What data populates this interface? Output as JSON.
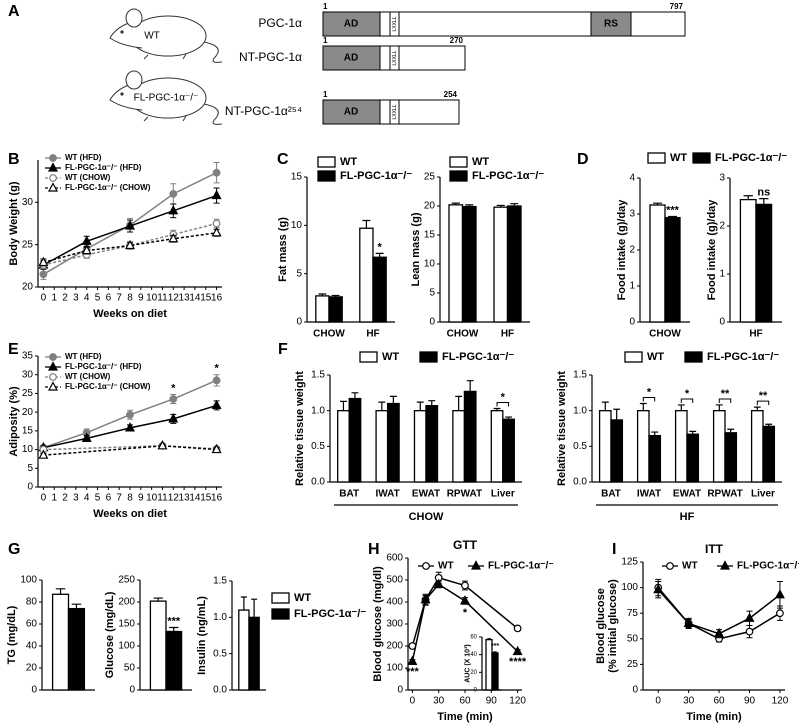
{
  "diagram": {
    "panel": "A",
    "mice": [
      "WT",
      "FL-PGC-1α⁻/⁻"
    ],
    "proteins": [
      {
        "name": "PGC-1α",
        "start": 1,
        "end": 797,
        "domains": [
          "AD",
          "LXXLL",
          "RS"
        ]
      },
      {
        "name": "NT-PGC-1α",
        "start": 1,
        "end": 270,
        "domains": [
          "AD",
          "LXXLL"
        ]
      },
      {
        "name": "NT-PGC-1α²⁵⁴",
        "start": 1,
        "end": 254,
        "domains": [
          "AD",
          "LXXLL"
        ]
      }
    ]
  },
  "chart_data": [
    {
      "type": "line",
      "panel": "B",
      "y_label": "Body Weight (g)",
      "x_label": "Weeks on diet",
      "xlim": [
        -0.5,
        16.5
      ],
      "xticks": [
        0,
        1,
        2,
        3,
        4,
        5,
        6,
        7,
        8,
        9,
        10,
        11,
        12,
        13,
        14,
        15,
        16
      ],
      "ylim": [
        20,
        35
      ],
      "yticks": [
        20,
        25,
        30
      ],
      "legend": "upper left",
      "series": [
        {
          "name": "WT (HFD)",
          "color": "#808080",
          "marker": "circle",
          "filled": true,
          "dashed": false,
          "x": [
            0,
            4,
            8,
            12,
            16
          ],
          "values": [
            21.5,
            24.5,
            27.3,
            31,
            33.5
          ],
          "errors": [
            0.6,
            0.5,
            0.8,
            1.2,
            1.2
          ]
        },
        {
          "name": "FL-PGC-1α⁻/⁻ (HFD)",
          "color": "#000000",
          "marker": "triangle",
          "filled": true,
          "dashed": false,
          "x": [
            0,
            4,
            8,
            12,
            16
          ],
          "values": [
            22.6,
            25.4,
            27.2,
            29,
            30.8
          ],
          "errors": [
            0.5,
            0.6,
            0.7,
            0.8,
            0.9
          ]
        },
        {
          "name": "WT (CHOW)",
          "color": "#808080",
          "marker": "circle",
          "filled": false,
          "dashed": true,
          "x": [
            0,
            4,
            8,
            12,
            16
          ],
          "values": [
            22.6,
            23.8,
            24.9,
            26.2,
            27.5
          ],
          "errors": [
            0.4,
            0.4,
            0.4,
            0.5,
            0.5
          ]
        },
        {
          "name": "FL-PGC-1α⁻/⁻ (CHOW)",
          "color": "#000000",
          "marker": "triangle",
          "filled": false,
          "dashed": true,
          "x": [
            0,
            4,
            8,
            12,
            16
          ],
          "values": [
            22.9,
            24.3,
            24.9,
            25.7,
            26.4
          ],
          "errors": [
            0.4,
            0.4,
            0.4,
            0.4,
            0.4
          ]
        }
      ]
    },
    {
      "type": "bar",
      "panel": "C",
      "y_label": "Fat mass (g)",
      "categories": [
        "CHOW",
        "HF"
      ],
      "ylim": [
        0,
        15
      ],
      "yticks": [
        0,
        5,
        10,
        15
      ],
      "legend": "upper left",
      "annotations": [
        null,
        "*"
      ],
      "series": [
        {
          "name": "WT",
          "color": "#ffffff",
          "values": [
            2.7,
            9.7
          ],
          "errors": [
            0.2,
            0.8
          ]
        },
        {
          "name": "FL-PGC-1α⁻/⁻",
          "color": "#000000",
          "values": [
            2.6,
            6.7
          ],
          "errors": [
            0.15,
            0.4
          ]
        }
      ]
    },
    {
      "type": "bar",
      "y_label": "Lean mass (g)",
      "categories": [
        "CHOW",
        "HF"
      ],
      "ylim": [
        0,
        25
      ],
      "yticks": [
        0,
        5,
        10,
        15,
        20,
        25
      ],
      "legend": "upper left",
      "series": [
        {
          "name": "WT",
          "color": "#ffffff",
          "values": [
            20.2,
            19.8
          ],
          "errors": [
            0.3,
            0.3
          ]
        },
        {
          "name": "FL-PGC-1α⁻/⁻",
          "color": "#000000",
          "values": [
            19.9,
            20.0
          ],
          "errors": [
            0.3,
            0.4
          ]
        }
      ]
    },
    {
      "type": "bar",
      "panel": "D",
      "y_label": "Food intake (g)/day",
      "categories": [
        "CHOW"
      ],
      "ylim": [
        0,
        4
      ],
      "yticks": [
        0,
        1,
        2,
        3,
        4
      ],
      "legend": "top",
      "annotations": [
        "***"
      ],
      "series": [
        {
          "name": "WT",
          "color": "#ffffff",
          "values": [
            3.25
          ],
          "errors": [
            0.05
          ]
        },
        {
          "name": "FL-PGC-1α⁻/⁻",
          "color": "#000000",
          "values": [
            2.9
          ],
          "errors": [
            0.03
          ]
        }
      ]
    },
    {
      "type": "bar",
      "y_label": "Food intake (g)/day",
      "categories": [
        "HF"
      ],
      "ylim": [
        0,
        3
      ],
      "yticks": [
        0,
        1,
        2,
        3
      ],
      "annotations": [
        "ns"
      ],
      "series": [
        {
          "color": "#ffffff",
          "values": [
            2.55
          ],
          "errors": [
            0.08
          ]
        },
        {
          "color": "#000000",
          "values": [
            2.45
          ],
          "errors": [
            0.12
          ]
        }
      ]
    },
    {
      "type": "line",
      "panel": "E",
      "y_label": "Adiposity (%)",
      "x_label": "Weeks on diet",
      "xlim": [
        -0.5,
        16.5
      ],
      "xticks": [
        0,
        1,
        2,
        3,
        4,
        5,
        6,
        7,
        8,
        9,
        10,
        11,
        12,
        13,
        14,
        15,
        16
      ],
      "ylim": [
        0,
        35
      ],
      "yticks": [
        0,
        5,
        10,
        15,
        20,
        25,
        30,
        35
      ],
      "legend": "upper left",
      "annotations": [
        {
          "text": "*",
          "x": 12
        },
        {
          "text": "*",
          "x": 16
        }
      ],
      "annotation_position": "above",
      "series": [
        {
          "name": "WT (HFD)",
          "color": "#808080",
          "marker": "circle",
          "filled": true,
          "dashed": false,
          "x": [
            0,
            4,
            8,
            12,
            16
          ],
          "values": [
            10.5,
            14.5,
            19.3,
            23.5,
            28.5
          ],
          "errors": [
            0.5,
            1,
            1.2,
            1.2,
            1.5
          ]
        },
        {
          "name": "FL-PGC-1α⁻/⁻ (HFD)",
          "color": "#000000",
          "marker": "triangle",
          "filled": true,
          "dashed": false,
          "x": [
            0,
            4,
            8,
            12,
            16
          ],
          "values": [
            10.5,
            13,
            15.8,
            18.2,
            21.8
          ],
          "errors": [
            0.5,
            0.8,
            0.8,
            1.2,
            1.2
          ]
        },
        {
          "name": "WT (CHOW)",
          "color": "#808080",
          "marker": "circle",
          "filled": false,
          "dashed": true,
          "x": [
            0,
            11,
            16
          ],
          "values": [
            10,
            11,
            10.2
          ],
          "errors": [
            0.5,
            0.5,
            0.5
          ]
        },
        {
          "name": "FL-PGC-1α⁻/⁻ (CHOW)",
          "color": "#000000",
          "marker": "triangle",
          "filled": false,
          "dashed": true,
          "x": [
            0,
            11,
            16
          ],
          "values": [
            8.5,
            11,
            10
          ],
          "errors": [
            0.5,
            0.5,
            0.5
          ]
        }
      ]
    },
    {
      "type": "bar",
      "panel": "F",
      "y_label": "Relative tissue weight",
      "categories": [
        "BAT",
        "IWAT",
        "EWAT",
        "RPWAT",
        "Liver"
      ],
      "group_label": "CHOW",
      "brackets": true,
      "ylim": [
        0,
        1.5
      ],
      "yticks": [
        {
          "value": 0,
          "label": "0.0"
        },
        0.5,
        {
          "value": 1,
          "label": "1.0"
        },
        1.5
      ],
      "legend": "top",
      "annotations": [
        null,
        null,
        null,
        null,
        "*"
      ],
      "series": [
        {
          "name": "WT",
          "color": "#ffffff",
          "values": [
            1,
            1,
            1,
            1,
            1
          ],
          "errors": [
            0.13,
            0.12,
            0.12,
            0.2,
            0.03
          ]
        },
        {
          "name": "FL-PGC-1α⁻/⁻",
          "color": "#000000",
          "values": [
            1.17,
            1.1,
            1.07,
            1.27,
            0.88
          ],
          "errors": [
            0.08,
            0.1,
            0.07,
            0.15,
            0.03
          ]
        }
      ]
    },
    {
      "type": "bar",
      "y_label": "Relative tissue weight",
      "categories": [
        "BAT",
        "IWAT",
        "EWAT",
        "RPWAT",
        "Liver"
      ],
      "group_label": "HF",
      "brackets": true,
      "ylim": [
        0,
        1.5
      ],
      "yticks": [
        {
          "value": 0,
          "label": "0.0"
        },
        0.5,
        {
          "value": 1,
          "label": "1.0"
        },
        1.5
      ],
      "legend": "top",
      "annotations": [
        null,
        "*",
        "*",
        "**",
        "**"
      ],
      "series": [
        {
          "name": "WT",
          "color": "#ffffff",
          "values": [
            1,
            1,
            1,
            1,
            1
          ],
          "errors": [
            0.12,
            0.1,
            0.08,
            0.08,
            0.05
          ]
        },
        {
          "name": "FL-PGC-1α⁻/⁻",
          "color": "#000000",
          "values": [
            0.87,
            0.65,
            0.67,
            0.69,
            0.78
          ],
          "errors": [
            0.15,
            0.05,
            0.04,
            0.05,
            0.03
          ]
        }
      ]
    },
    {
      "type": "bar",
      "panel": "G",
      "y_label": "TG (mg/dL)",
      "categories": [
        null
      ],
      "ylim": [
        0,
        100
      ],
      "yticks": [
        0,
        20,
        40,
        60,
        80,
        100
      ],
      "series": [
        {
          "color": "#ffffff",
          "values": [
            87
          ],
          "errors": [
            5
          ]
        },
        {
          "color": "#000000",
          "values": [
            74
          ],
          "errors": [
            4
          ]
        }
      ]
    },
    {
      "type": "bar",
      "y_label": "Glucose (mg/dL)",
      "categories": [
        null
      ],
      "ylim": [
        0,
        250
      ],
      "yticks": [
        0,
        50,
        100,
        150,
        200,
        250
      ],
      "annotations": [
        "***"
      ],
      "series": [
        {
          "color": "#ffffff",
          "values": [
            202
          ],
          "errors": [
            7
          ]
        },
        {
          "color": "#000000",
          "values": [
            133
          ],
          "errors": [
            9
          ]
        }
      ]
    },
    {
      "type": "bar",
      "y_label": "Insulin (ng/mL)",
      "categories": [
        null
      ],
      "ylim": [
        0,
        1.5
      ],
      "yticks": [
        {
          "value": 0,
          "label": "0.0"
        },
        0.5,
        {
          "value": 1,
          "label": "1.0"
        },
        1.5
      ],
      "legend": "right",
      "series": [
        {
          "name": "WT",
          "color": "#ffffff",
          "values": [
            1.1
          ],
          "errors": [
            0.18
          ]
        },
        {
          "name": "FL-PGC-1α⁻/⁻",
          "color": "#000000",
          "values": [
            1.0
          ],
          "errors": [
            0.25
          ]
        }
      ]
    },
    {
      "type": "line",
      "panel": "H",
      "title": "GTT",
      "y_label": "Blood glucose (mg/dl)",
      "x_label": "Time (min)",
      "xlim": [
        -5,
        125
      ],
      "xticks": [
        0,
        30,
        60,
        90,
        120
      ],
      "ylim": [
        0,
        600
      ],
      "yticks": [
        0,
        100,
        200,
        300,
        400,
        500,
        600
      ],
      "legend": "top",
      "annotations": [
        {
          "text": "***",
          "x": 0
        },
        {
          "text": "*",
          "x": 60
        },
        {
          "text": "****",
          "x": 120
        }
      ],
      "annotation_position": "below",
      "series": [
        {
          "name": "WT",
          "color": "#000000",
          "marker": "circle",
          "filled": false,
          "dashed": false,
          "x": [
            0,
            15,
            30,
            60,
            120
          ],
          "values": [
            200,
            410,
            510,
            475,
            280
          ],
          "errors": [
            10,
            25,
            25,
            20,
            10
          ]
        },
        {
          "name": "FL-PGC-1α⁻/⁻",
          "color": "#000000",
          "marker": "triangle",
          "filled": true,
          "dashed": false,
          "x": [
            0,
            15,
            30,
            60,
            120
          ],
          "values": [
            130,
            410,
            480,
            405,
            175
          ],
          "errors": [
            8,
            20,
            15,
            15,
            8
          ]
        }
      ]
    },
    {
      "type": "bar",
      "y_label": "AUC (X 10³)",
      "categories": [
        null
      ],
      "ylim": [
        0,
        60
      ],
      "yticks": [
        0,
        20,
        40,
        60
      ],
      "annotations": [
        "***"
      ],
      "series": [
        {
          "color": "#ffffff",
          "values": [
            57
          ],
          "errors": [
            1
          ]
        },
        {
          "color": "#000000",
          "values": [
            42
          ],
          "errors": [
            1
          ]
        }
      ]
    },
    {
      "type": "line",
      "panel": "I",
      "title": "ITT",
      "y_label": [
        "Blood glucose",
        "(% initial glucose)"
      ],
      "x_label": "Time (min)",
      "xlim": [
        -15,
        125
      ],
      "xticks": [
        0,
        30,
        60,
        90,
        120
      ],
      "ylim": [
        0,
        125
      ],
      "yticks": [
        0,
        25,
        50,
        75,
        100,
        125
      ],
      "legend": "top",
      "series": [
        {
          "name": "WT",
          "color": "#000000",
          "marker": "circle",
          "filled": false,
          "dashed": false,
          "x": [
            0,
            30,
            60,
            90,
            120
          ],
          "values": [
            100,
            65,
            50,
            57,
            75
          ],
          "errors": [
            8,
            5,
            3,
            6,
            7
          ]
        },
        {
          "name": "FL-PGC-1α⁻/⁻",
          "color": "#000000",
          "marker": "triangle",
          "filled": true,
          "dashed": false,
          "x": [
            0,
            30,
            60,
            90,
            120
          ],
          "values": [
            98,
            65,
            55,
            70,
            93
          ],
          "errors": [
            8,
            4,
            4,
            7,
            13
          ]
        }
      ]
    }
  ]
}
